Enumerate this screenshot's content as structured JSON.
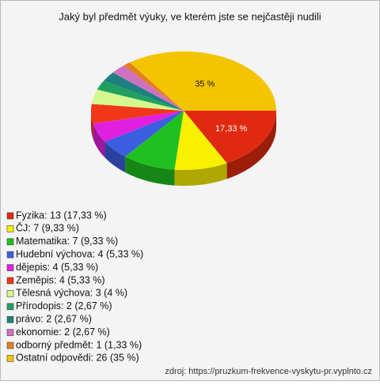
{
  "chart_data": {
    "type": "pie",
    "title": "Jaký byl předmět výuky, ve kterém jste se nejčastěji nudili",
    "categories": [
      "Fyzika: 13 (17,33 %)",
      "ČJ: 7 (9,33 %)",
      "Matematika: 7 (9,33 %)",
      "Hudební výchova: 4 (5,33 %)",
      "dějepis: 4 (5,33 %)",
      "Zeměpis: 4 (5,33 %)",
      "Tělesná výchova: 3 (4 %)",
      "Přírodopis: 2 (2,67 %)",
      "právo: 2 (2,67 %)",
      "ekonomie: 2 (2,67 %)",
      "odborný předmět: 1 (1,33 %)",
      "Ostatní odpovědi: 26 (35 %)"
    ],
    "values": [
      17.33,
      9.33,
      9.33,
      5.33,
      5.33,
      5.33,
      4,
      2.67,
      2.67,
      2.67,
      1.33,
      35
    ],
    "value_labels": [
      "17,33 %",
      null,
      null,
      null,
      null,
      null,
      null,
      null,
      null,
      null,
      null,
      "35 %"
    ],
    "colors": [
      "#e02a10",
      "#f8f000",
      "#20c020",
      "#3c5ee0",
      "#e020e0",
      "#f03818",
      "#d4f890",
      "#20a060",
      "#1e8080",
      "#d070c0",
      "#e08020",
      "#f4c400"
    ],
    "source": "zdroj: https://pruzkum-frekvence-vyskytu-pr.vyplnto.cz"
  }
}
